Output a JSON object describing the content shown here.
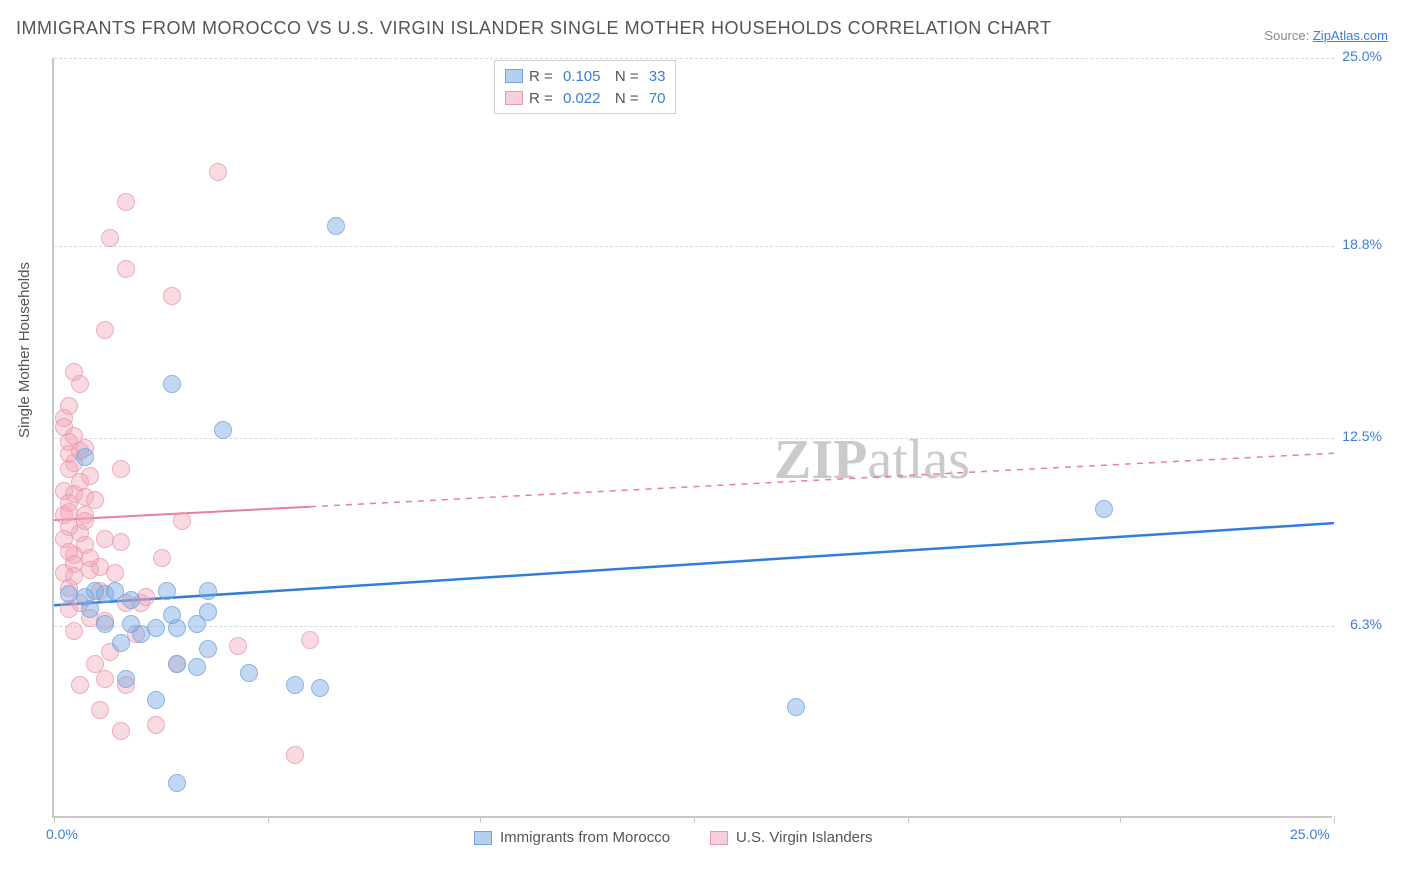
{
  "title": "IMMIGRANTS FROM MOROCCO VS U.S. VIRGIN ISLANDER SINGLE MOTHER HOUSEHOLDS CORRELATION CHART",
  "source": {
    "label": "Source:",
    "link_text": "ZipAtlas.com"
  },
  "watermark": {
    "text1": "ZIP",
    "text2": "atlas"
  },
  "chart": {
    "type": "scatter-with-regression",
    "ylabel": "Single Mother Households",
    "background_color": "#ffffff",
    "grid_color": "#d9d9d9",
    "axis_color": "#c7c7c7",
    "tick_color": "#3b7dd8",
    "xlim": [
      0,
      25
    ],
    "ylim": [
      0,
      25
    ],
    "yticks": [
      6.3,
      12.5,
      18.8,
      25.0
    ],
    "ytick_labels": [
      "6.3%",
      "12.5%",
      "18.8%",
      "25.0%"
    ],
    "xticks": [
      0,
      25
    ],
    "xtick_labels": [
      "0.0%",
      "25.0%"
    ],
    "xtick_marks": [
      0,
      4.17,
      8.33,
      12.5,
      16.67,
      20.83,
      25
    ],
    "legend_top": [
      {
        "color": "blue",
        "R": "0.105",
        "N": "33"
      },
      {
        "color": "pink",
        "R": "0.022",
        "N": "70"
      }
    ],
    "legend_bottom": [
      {
        "color": "blue",
        "label": "Immigrants from Morocco"
      },
      {
        "color": "pink",
        "label": "U.S. Virgin Islanders"
      }
    ],
    "trend_lines": {
      "blue": {
        "y_at_0": 7.0,
        "y_at_25": 9.7,
        "solid_until_x": 25,
        "color": "#2f7ed8",
        "width": 2.5
      },
      "pink": {
        "y_at_0": 9.8,
        "y_at_25": 12.0,
        "solid_until_x": 5,
        "color": "#e77ea0",
        "width": 2
      }
    },
    "series": {
      "blue": {
        "marker_fill": "rgba(120,170,225,0.55)",
        "marker_stroke": "#6fa6dd",
        "marker_size": 18,
        "points": [
          [
            5.5,
            19.4
          ],
          [
            2.3,
            14.2
          ],
          [
            3.3,
            12.7
          ],
          [
            3.0,
            7.4
          ],
          [
            0.6,
            7.2
          ],
          [
            0.8,
            7.4
          ],
          [
            1.0,
            7.3
          ],
          [
            1.2,
            7.4
          ],
          [
            0.3,
            7.3
          ],
          [
            1.5,
            7.1
          ],
          [
            0.7,
            6.8
          ],
          [
            2.2,
            7.4
          ],
          [
            0.6,
            11.8
          ],
          [
            1.0,
            6.3
          ],
          [
            1.5,
            6.3
          ],
          [
            2.0,
            6.2
          ],
          [
            2.4,
            6.2
          ],
          [
            2.8,
            6.3
          ],
          [
            1.7,
            6.0
          ],
          [
            1.3,
            5.7
          ],
          [
            3.0,
            5.5
          ],
          [
            2.4,
            5.0
          ],
          [
            2.8,
            4.9
          ],
          [
            1.4,
            4.5
          ],
          [
            2.0,
            3.8
          ],
          [
            3.8,
            4.7
          ],
          [
            4.7,
            4.3
          ],
          [
            5.2,
            4.2
          ],
          [
            2.4,
            1.1
          ],
          [
            14.5,
            3.6
          ],
          [
            20.5,
            10.1
          ],
          [
            2.3,
            6.6
          ],
          [
            3.0,
            6.7
          ]
        ]
      },
      "pink": {
        "marker_fill": "rgba(240,160,180,0.48)",
        "marker_stroke": "#e89bb0",
        "marker_size": 18,
        "points": [
          [
            3.2,
            21.2
          ],
          [
            1.4,
            20.2
          ],
          [
            1.1,
            19.0
          ],
          [
            1.4,
            18.0
          ],
          [
            2.3,
            17.1
          ],
          [
            1.0,
            16.0
          ],
          [
            0.4,
            14.6
          ],
          [
            0.5,
            14.2
          ],
          [
            0.3,
            13.5
          ],
          [
            0.2,
            13.1
          ],
          [
            0.2,
            12.8
          ],
          [
            0.3,
            12.3
          ],
          [
            0.6,
            12.1
          ],
          [
            0.4,
            11.6
          ],
          [
            0.7,
            11.2
          ],
          [
            0.3,
            11.4
          ],
          [
            0.5,
            11.0
          ],
          [
            0.4,
            10.6
          ],
          [
            0.2,
            10.7
          ],
          [
            0.3,
            10.3
          ],
          [
            0.6,
            9.9
          ],
          [
            0.3,
            10.0
          ],
          [
            0.6,
            10.5
          ],
          [
            0.8,
            10.4
          ],
          [
            0.5,
            9.3
          ],
          [
            0.3,
            9.5
          ],
          [
            0.2,
            9.1
          ],
          [
            0.6,
            8.9
          ],
          [
            0.4,
            8.6
          ],
          [
            0.7,
            8.5
          ],
          [
            0.3,
            8.7
          ],
          [
            0.4,
            8.3
          ],
          [
            0.2,
            8.0
          ],
          [
            0.7,
            8.1
          ],
          [
            0.9,
            8.2
          ],
          [
            1.0,
            9.1
          ],
          [
            1.2,
            8.0
          ],
          [
            0.4,
            7.9
          ],
          [
            0.3,
            7.5
          ],
          [
            1.3,
            9.0
          ],
          [
            1.4,
            7.0
          ],
          [
            0.9,
            7.4
          ],
          [
            1.7,
            7.0
          ],
          [
            1.3,
            11.4
          ],
          [
            0.7,
            6.5
          ],
          [
            1.0,
            6.4
          ],
          [
            0.4,
            6.1
          ],
          [
            1.6,
            6.0
          ],
          [
            1.1,
            5.4
          ],
          [
            0.8,
            5.0
          ],
          [
            1.0,
            4.5
          ],
          [
            1.4,
            4.3
          ],
          [
            0.5,
            4.3
          ],
          [
            0.9,
            3.5
          ],
          [
            1.3,
            2.8
          ],
          [
            2.0,
            3.0
          ],
          [
            2.4,
            5.0
          ],
          [
            3.6,
            5.6
          ],
          [
            4.7,
            2.0
          ],
          [
            5.0,
            5.8
          ],
          [
            1.8,
            7.2
          ],
          [
            2.1,
            8.5
          ],
          [
            2.5,
            9.7
          ],
          [
            0.3,
            11.9
          ],
          [
            0.5,
            12.0
          ],
          [
            0.4,
            12.5
          ],
          [
            0.6,
            9.7
          ],
          [
            0.2,
            9.9
          ],
          [
            0.3,
            6.8
          ],
          [
            0.5,
            7.0
          ]
        ]
      }
    }
  }
}
